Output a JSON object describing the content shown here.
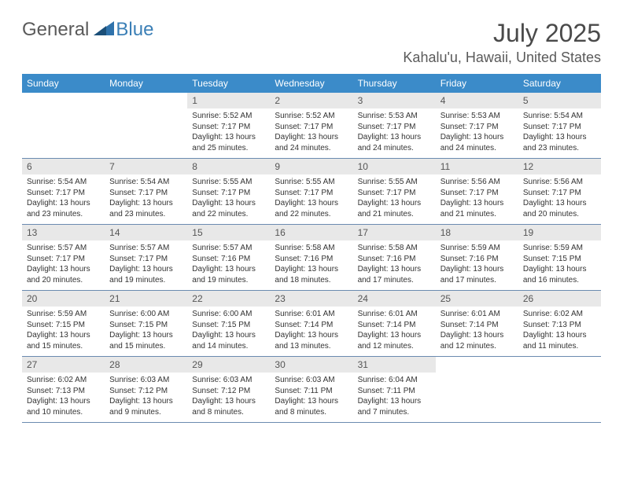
{
  "logo": {
    "text_a": "General",
    "text_b": "Blue"
  },
  "title": "July 2025",
  "location": "Kahalu'u, Hawaii, United States",
  "colors": {
    "header_bg": "#3b8bc9",
    "header_text": "#ffffff",
    "daynum_bg": "#e8e8e8",
    "divider": "#6b8bb0",
    "text": "#333333",
    "title_text": "#4a4a4a",
    "logo_gray": "#5a5a5a",
    "logo_blue": "#3b7fb6"
  },
  "weekdays": [
    "Sunday",
    "Monday",
    "Tuesday",
    "Wednesday",
    "Thursday",
    "Friday",
    "Saturday"
  ],
  "first_weekday_index": 2,
  "days": [
    {
      "n": 1,
      "sunrise": "5:52 AM",
      "sunset": "7:17 PM",
      "daylight": "13 hours and 25 minutes."
    },
    {
      "n": 2,
      "sunrise": "5:52 AM",
      "sunset": "7:17 PM",
      "daylight": "13 hours and 24 minutes."
    },
    {
      "n": 3,
      "sunrise": "5:53 AM",
      "sunset": "7:17 PM",
      "daylight": "13 hours and 24 minutes."
    },
    {
      "n": 4,
      "sunrise": "5:53 AM",
      "sunset": "7:17 PM",
      "daylight": "13 hours and 24 minutes."
    },
    {
      "n": 5,
      "sunrise": "5:54 AM",
      "sunset": "7:17 PM",
      "daylight": "13 hours and 23 minutes."
    },
    {
      "n": 6,
      "sunrise": "5:54 AM",
      "sunset": "7:17 PM",
      "daylight": "13 hours and 23 minutes."
    },
    {
      "n": 7,
      "sunrise": "5:54 AM",
      "sunset": "7:17 PM",
      "daylight": "13 hours and 23 minutes."
    },
    {
      "n": 8,
      "sunrise": "5:55 AM",
      "sunset": "7:17 PM",
      "daylight": "13 hours and 22 minutes."
    },
    {
      "n": 9,
      "sunrise": "5:55 AM",
      "sunset": "7:17 PM",
      "daylight": "13 hours and 22 minutes."
    },
    {
      "n": 10,
      "sunrise": "5:55 AM",
      "sunset": "7:17 PM",
      "daylight": "13 hours and 21 minutes."
    },
    {
      "n": 11,
      "sunrise": "5:56 AM",
      "sunset": "7:17 PM",
      "daylight": "13 hours and 21 minutes."
    },
    {
      "n": 12,
      "sunrise": "5:56 AM",
      "sunset": "7:17 PM",
      "daylight": "13 hours and 20 minutes."
    },
    {
      "n": 13,
      "sunrise": "5:57 AM",
      "sunset": "7:17 PM",
      "daylight": "13 hours and 20 minutes."
    },
    {
      "n": 14,
      "sunrise": "5:57 AM",
      "sunset": "7:17 PM",
      "daylight": "13 hours and 19 minutes."
    },
    {
      "n": 15,
      "sunrise": "5:57 AM",
      "sunset": "7:16 PM",
      "daylight": "13 hours and 19 minutes."
    },
    {
      "n": 16,
      "sunrise": "5:58 AM",
      "sunset": "7:16 PM",
      "daylight": "13 hours and 18 minutes."
    },
    {
      "n": 17,
      "sunrise": "5:58 AM",
      "sunset": "7:16 PM",
      "daylight": "13 hours and 17 minutes."
    },
    {
      "n": 18,
      "sunrise": "5:59 AM",
      "sunset": "7:16 PM",
      "daylight": "13 hours and 17 minutes."
    },
    {
      "n": 19,
      "sunrise": "5:59 AM",
      "sunset": "7:15 PM",
      "daylight": "13 hours and 16 minutes."
    },
    {
      "n": 20,
      "sunrise": "5:59 AM",
      "sunset": "7:15 PM",
      "daylight": "13 hours and 15 minutes."
    },
    {
      "n": 21,
      "sunrise": "6:00 AM",
      "sunset": "7:15 PM",
      "daylight": "13 hours and 15 minutes."
    },
    {
      "n": 22,
      "sunrise": "6:00 AM",
      "sunset": "7:15 PM",
      "daylight": "13 hours and 14 minutes."
    },
    {
      "n": 23,
      "sunrise": "6:01 AM",
      "sunset": "7:14 PM",
      "daylight": "13 hours and 13 minutes."
    },
    {
      "n": 24,
      "sunrise": "6:01 AM",
      "sunset": "7:14 PM",
      "daylight": "13 hours and 12 minutes."
    },
    {
      "n": 25,
      "sunrise": "6:01 AM",
      "sunset": "7:14 PM",
      "daylight": "13 hours and 12 minutes."
    },
    {
      "n": 26,
      "sunrise": "6:02 AM",
      "sunset": "7:13 PM",
      "daylight": "13 hours and 11 minutes."
    },
    {
      "n": 27,
      "sunrise": "6:02 AM",
      "sunset": "7:13 PM",
      "daylight": "13 hours and 10 minutes."
    },
    {
      "n": 28,
      "sunrise": "6:03 AM",
      "sunset": "7:12 PM",
      "daylight": "13 hours and 9 minutes."
    },
    {
      "n": 29,
      "sunrise": "6:03 AM",
      "sunset": "7:12 PM",
      "daylight": "13 hours and 8 minutes."
    },
    {
      "n": 30,
      "sunrise": "6:03 AM",
      "sunset": "7:11 PM",
      "daylight": "13 hours and 8 minutes."
    },
    {
      "n": 31,
      "sunrise": "6:04 AM",
      "sunset": "7:11 PM",
      "daylight": "13 hours and 7 minutes."
    }
  ],
  "labels": {
    "sunrise_prefix": "Sunrise: ",
    "sunset_prefix": "Sunset: ",
    "daylight_prefix": "Daylight: "
  }
}
